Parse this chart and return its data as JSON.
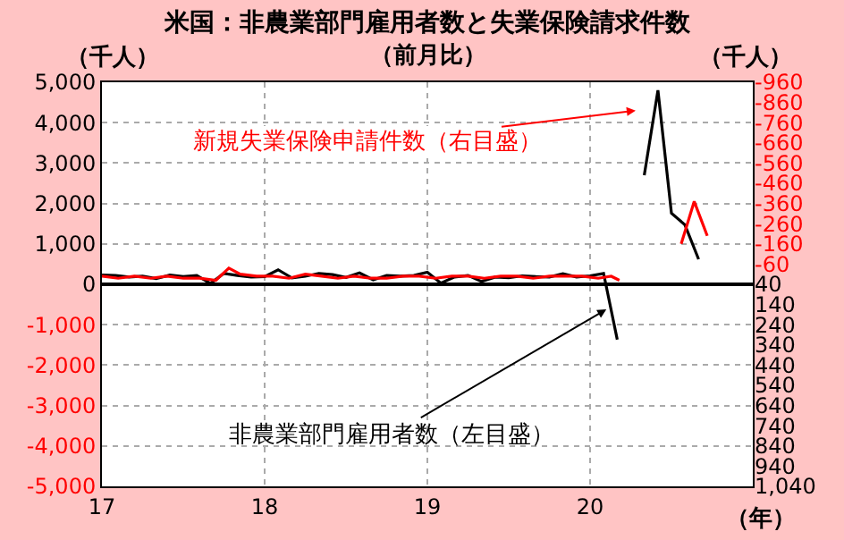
{
  "chart_data": {
    "type": "line",
    "title": "米国：非農業部門雇用者数と失業保険請求件数",
    "subtitle": "（前月比）",
    "ylabel": "（千人）",
    "y2label": "（千人）",
    "xlabel": "（年）",
    "xlim": [
      2017,
      2021
    ],
    "xticks": [
      {
        "value": 2017,
        "label": "17"
      },
      {
        "value": 2018,
        "label": "18"
      },
      {
        "value": 2019,
        "label": "19"
      },
      {
        "value": 2020,
        "label": "20"
      },
      {
        "value": 2021,
        "label": null
      }
    ],
    "ylim": [
      -5000,
      5000
    ],
    "yticks": [
      {
        "value": -5000,
        "label": "-5,000"
      },
      {
        "value": -4000,
        "label": "-4,000"
      },
      {
        "value": -3000,
        "label": "-3,000"
      },
      {
        "value": -2000,
        "label": "-2,000"
      },
      {
        "value": -1000,
        "label": "-1,000"
      },
      0,
      {
        "value": 1000,
        "label": "1,000"
      },
      {
        "value": 2000,
        "label": "2,000"
      },
      {
        "value": 3000,
        "label": "3,000"
      },
      {
        "value": 4000,
        "label": "4,000"
      },
      {
        "value": 5000,
        "label": "5,000"
      }
    ],
    "y2lim": [
      1040,
      -960
    ],
    "y2ticks": [
      -960,
      -860,
      -760,
      -660,
      -560,
      -460,
      -360,
      -260,
      -160,
      -60,
      40,
      140,
      240,
      340,
      440,
      540,
      640,
      740,
      840,
      940,
      {
        "value": 1040,
        "label": "1,040"
      }
    ],
    "grid": true,
    "marker": "none",
    "line_style": "solid",
    "series": [
      {
        "color": "#000000",
        "x": [
          2017.0,
          2017.083,
          2017.167,
          2017.25,
          2017.333,
          2017.417,
          2017.5,
          2017.583,
          2017.667,
          2017.75,
          2017.833,
          2017.917,
          2018.0,
          2018.083,
          2018.167,
          2018.25,
          2018.333,
          2018.417,
          2018.5,
          2018.583,
          2018.667,
          2018.75,
          2018.833,
          2018.917,
          2019.0,
          2019.083,
          2019.167,
          2019.25,
          2019.333,
          2019.417,
          2019.5,
          2019.583,
          2019.667,
          2019.75,
          2019.833,
          2019.917,
          2020.0,
          2020.083,
          2020.167,
          2020.25,
          2020.333,
          2020.417,
          2020.5,
          2020.583,
          2020.667
        ],
        "values": [
          230,
          220,
          180,
          200,
          140,
          230,
          190,
          220,
          20,
          270,
          220,
          180,
          190,
          360,
          160,
          200,
          270,
          240,
          170,
          280,
          110,
          220,
          200,
          220,
          300,
          30,
          180,
          220,
          70,
          180,
          160,
          210,
          190,
          180,
          260,
          180,
          210,
          270,
          -1370,
          null,
          2700,
          4800,
          1760,
          1470,
          620
        ]
      },
      {
        "color": "#ff0000",
        "axis": "y2",
        "x": [
          2017.0,
          2017.1,
          2017.2,
          2017.3,
          2017.4,
          2017.5,
          2017.6,
          2017.7,
          2017.78,
          2017.85,
          2017.95,
          2018.05,
          2018.15,
          2018.25,
          2018.35,
          2018.45,
          2018.55,
          2018.65,
          2018.75,
          2018.85,
          2018.95,
          2019.05,
          2019.15,
          2019.25,
          2019.35,
          2019.45,
          2019.55,
          2019.65,
          2019.75,
          2019.85,
          2019.95,
          2020.05,
          2020.13,
          2020.18,
          2020.25,
          2020.56,
          2020.64,
          2020.72
        ],
        "values": [
          0,
          10,
          0,
          10,
          0,
          10,
          10,
          20,
          -40,
          -10,
          0,
          0,
          10,
          -10,
          0,
          10,
          0,
          10,
          10,
          0,
          0,
          10,
          0,
          0,
          10,
          0,
          0,
          10,
          0,
          0,
          0,
          10,
          0,
          20,
          null,
          -160,
          -370,
          -200
        ]
      }
    ],
    "annotations": [
      {
        "text": "非農業部門雇用者数（左目盛）",
        "x": 2020.1,
        "y": -620
      },
      "新規失業保険申請件数（右目盛）"
    ]
  }
}
